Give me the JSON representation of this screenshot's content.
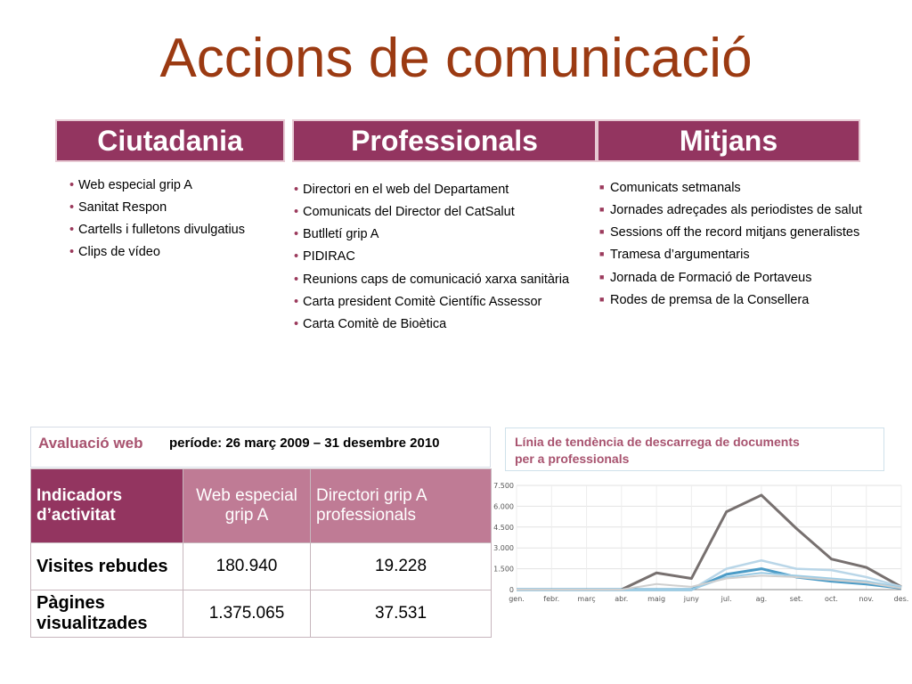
{
  "title": "Accions de comunicació",
  "columns": [
    {
      "heading": "Ciutadania",
      "items": [
        "Web especial grip A",
        "Sanitat Respon",
        "Cartells i fulletons divulgatius",
        "Clips de vídeo"
      ]
    },
    {
      "heading": "Professionals",
      "items": [
        "Directori en el web del Departament",
        "Comunicats del Director del CatSalut",
        "Butlletí grip A",
        "PIDIRAC",
        "Reunions caps de comunicació xarxa sanitària",
        "Carta president Comitè Científic Assessor",
        "Carta Comitè de Bioètica"
      ]
    },
    {
      "heading": "Mitjans",
      "items": [
        " Comunicats setmanals",
        "Jornades adreçades als periodistes de salut",
        "Sessions off  the record  mitjans generalistes",
        "Tramesa d’argumentaris",
        "Jornada de Formació de Portaveus",
        "Rodes de premsa de la Consellera"
      ]
    }
  ],
  "bullet_round": "•",
  "bullet_square": "■",
  "evaluation": {
    "label": "Avaluació web",
    "period": "període: 26 març 2009 – 31 desembre 2010"
  },
  "table": {
    "header": [
      "Indicadors d’activitat",
      "Web especial grip A",
      "Directori grip A professionals"
    ],
    "rows": [
      {
        "label": "Visites rebudes",
        "web": "180.940",
        "directori": "19.228"
      },
      {
        "label": "Pàgines visualitzades",
        "web": "1.375.065",
        "directori": "37.531"
      }
    ]
  },
  "trend": {
    "title_line1": "Línia de tendència de descarrega de documents",
    "title_line2": "per a professionals"
  },
  "chart_data": {
    "type": "line",
    "title": "Línia de tendència de descarrega de documents per a professionals",
    "categories": [
      "gen.",
      "febr.",
      "març",
      "abr.",
      "maig",
      "juny",
      "jul.",
      "ag.",
      "set.",
      "oct.",
      "nov.",
      "des."
    ],
    "y_ticks": [
      "0",
      "1.500",
      "3.000",
      "4.500",
      "6.000",
      "7.500"
    ],
    "ylim": [
      0,
      7500
    ],
    "grid": true,
    "series": [
      {
        "color": "#77706f",
        "width": 3,
        "values": [
          0,
          0,
          0,
          0,
          1200,
          800,
          5600,
          6800,
          4400,
          2200,
          1600,
          200
        ]
      },
      {
        "color": "#b9d6e8",
        "width": 2.5,
        "values": [
          0,
          0,
          0,
          0,
          0,
          0,
          1500,
          2100,
          1500,
          1400,
          900,
          200
        ]
      },
      {
        "color": "#4c9cc7",
        "width": 3,
        "values": [
          0,
          0,
          0,
          0,
          0,
          0,
          1100,
          1500,
          900,
          600,
          400,
          100
        ]
      },
      {
        "color": "#9ccbe4",
        "width": 2,
        "values": [
          0,
          0,
          0,
          0,
          0,
          0,
          900,
          1200,
          1000,
          800,
          600,
          150
        ]
      },
      {
        "color": "#cfcfcf",
        "width": 2,
        "values": [
          0,
          0,
          0,
          0,
          400,
          200,
          800,
          1000,
          900,
          700,
          500,
          100
        ]
      }
    ]
  }
}
